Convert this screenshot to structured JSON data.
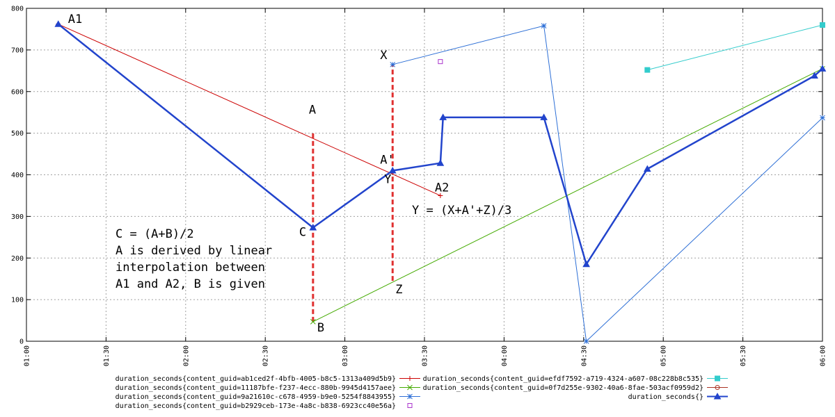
{
  "chart_data": {
    "type": "line",
    "title": "",
    "xlabel": "",
    "ylabel": "",
    "grid": true,
    "legend_position": "bottom",
    "xlim": [
      "01:00",
      "06:00"
    ],
    "ylim": [
      0,
      800
    ],
    "x_ticks": [
      "01:00",
      "01:30",
      "02:00",
      "02:30",
      "03:00",
      "03:30",
      "04:00",
      "04:30",
      "05:00",
      "05:30",
      "06:00"
    ],
    "y_ticks": [
      "0",
      "100",
      "200",
      "300",
      "400",
      "500",
      "600",
      "700",
      "800"
    ],
    "series": [
      {
        "name": "duration_seconds{content_guid=ab1ced2f-4bfb-4005-b8c5-1313a409d5b9}",
        "color": "#cc0000",
        "marker": "plus",
        "x": [
          "01:12",
          "03:36"
        ],
        "y": [
          762,
          350
        ]
      },
      {
        "name": "duration_seconds{content_guid=11187bfe-f237-4ecc-880b-9945d4157aee}",
        "color": "#44aa00",
        "marker": "x",
        "x": [
          "02:48",
          "06:00"
        ],
        "y": [
          47,
          655
        ]
      },
      {
        "name": "duration_seconds{content_guid=9a21610c-c678-4959-b9e0-5254f8843955}",
        "color": "#2d6fd6",
        "marker": "star",
        "x": [
          "03:18",
          "04:15",
          "04:31",
          "06:00"
        ],
        "y": [
          665,
          758,
          0,
          537
        ]
      },
      {
        "name": "duration_seconds{content_guid=b2929ceb-173e-4a8c-b838-6923cc40e56a}",
        "color": "#aa33cc",
        "marker": "open-square",
        "x": [
          "03:36"
        ],
        "y": [
          672
        ]
      },
      {
        "name": "duration_seconds{content_guid=efdf7592-a719-4324-a607-08c228b8c535}",
        "color": "#33cccc",
        "marker": "filled-square",
        "x": [
          "04:54",
          "06:00"
        ],
        "y": [
          652,
          760
        ]
      },
      {
        "name": "duration_seconds{content_guid=0f7d255e-9302-40a6-8fae-503acf0959d2}",
        "color": "#aa3322",
        "marker": "circle",
        "x": [],
        "y": []
      },
      {
        "name": "duration_seconds{}",
        "color": "#2244cc",
        "marker": "triangle",
        "thick": true,
        "x": [
          "01:12",
          "02:48",
          "03:18",
          "03:36",
          "03:37",
          "04:15",
          "04:31",
          "04:54",
          "05:57",
          "06:00"
        ],
        "y": [
          762,
          273,
          410,
          428,
          538,
          538,
          185,
          414,
          638,
          655
        ]
      }
    ],
    "annotations": {
      "labels": [
        {
          "text": "A1",
          "x": "01:12",
          "y": 762
        },
        {
          "text": "A",
          "x": "02:48",
          "y": 500
        },
        {
          "text": "C",
          "x": "02:48",
          "y": 273
        },
        {
          "text": "B",
          "x": "02:48",
          "y": 47
        },
        {
          "text": "X",
          "x": "03:18",
          "y": 665
        },
        {
          "text": "A'",
          "x": "03:18",
          "y": 410
        },
        {
          "text": "Y",
          "x": "03:18",
          "y": 410
        },
        {
          "text": "Z",
          "x": "03:18",
          "y": 145
        },
        {
          "text": "A2",
          "x": "03:36",
          "y": 350
        }
      ],
      "formula_y": "Y = (X+A'+Z)/3",
      "note_lines": [
        "C = (A+B)/2",
        "A is derived by linear",
        "interpolation between",
        "A1 and A2, B is given"
      ],
      "dashed_lines": [
        {
          "x": "02:48",
          "y_from": 47,
          "y_to": 500
        },
        {
          "x": "03:18",
          "y_from": 145,
          "y_to": 665
        }
      ],
      "dashed_color": "#e03030"
    }
  }
}
